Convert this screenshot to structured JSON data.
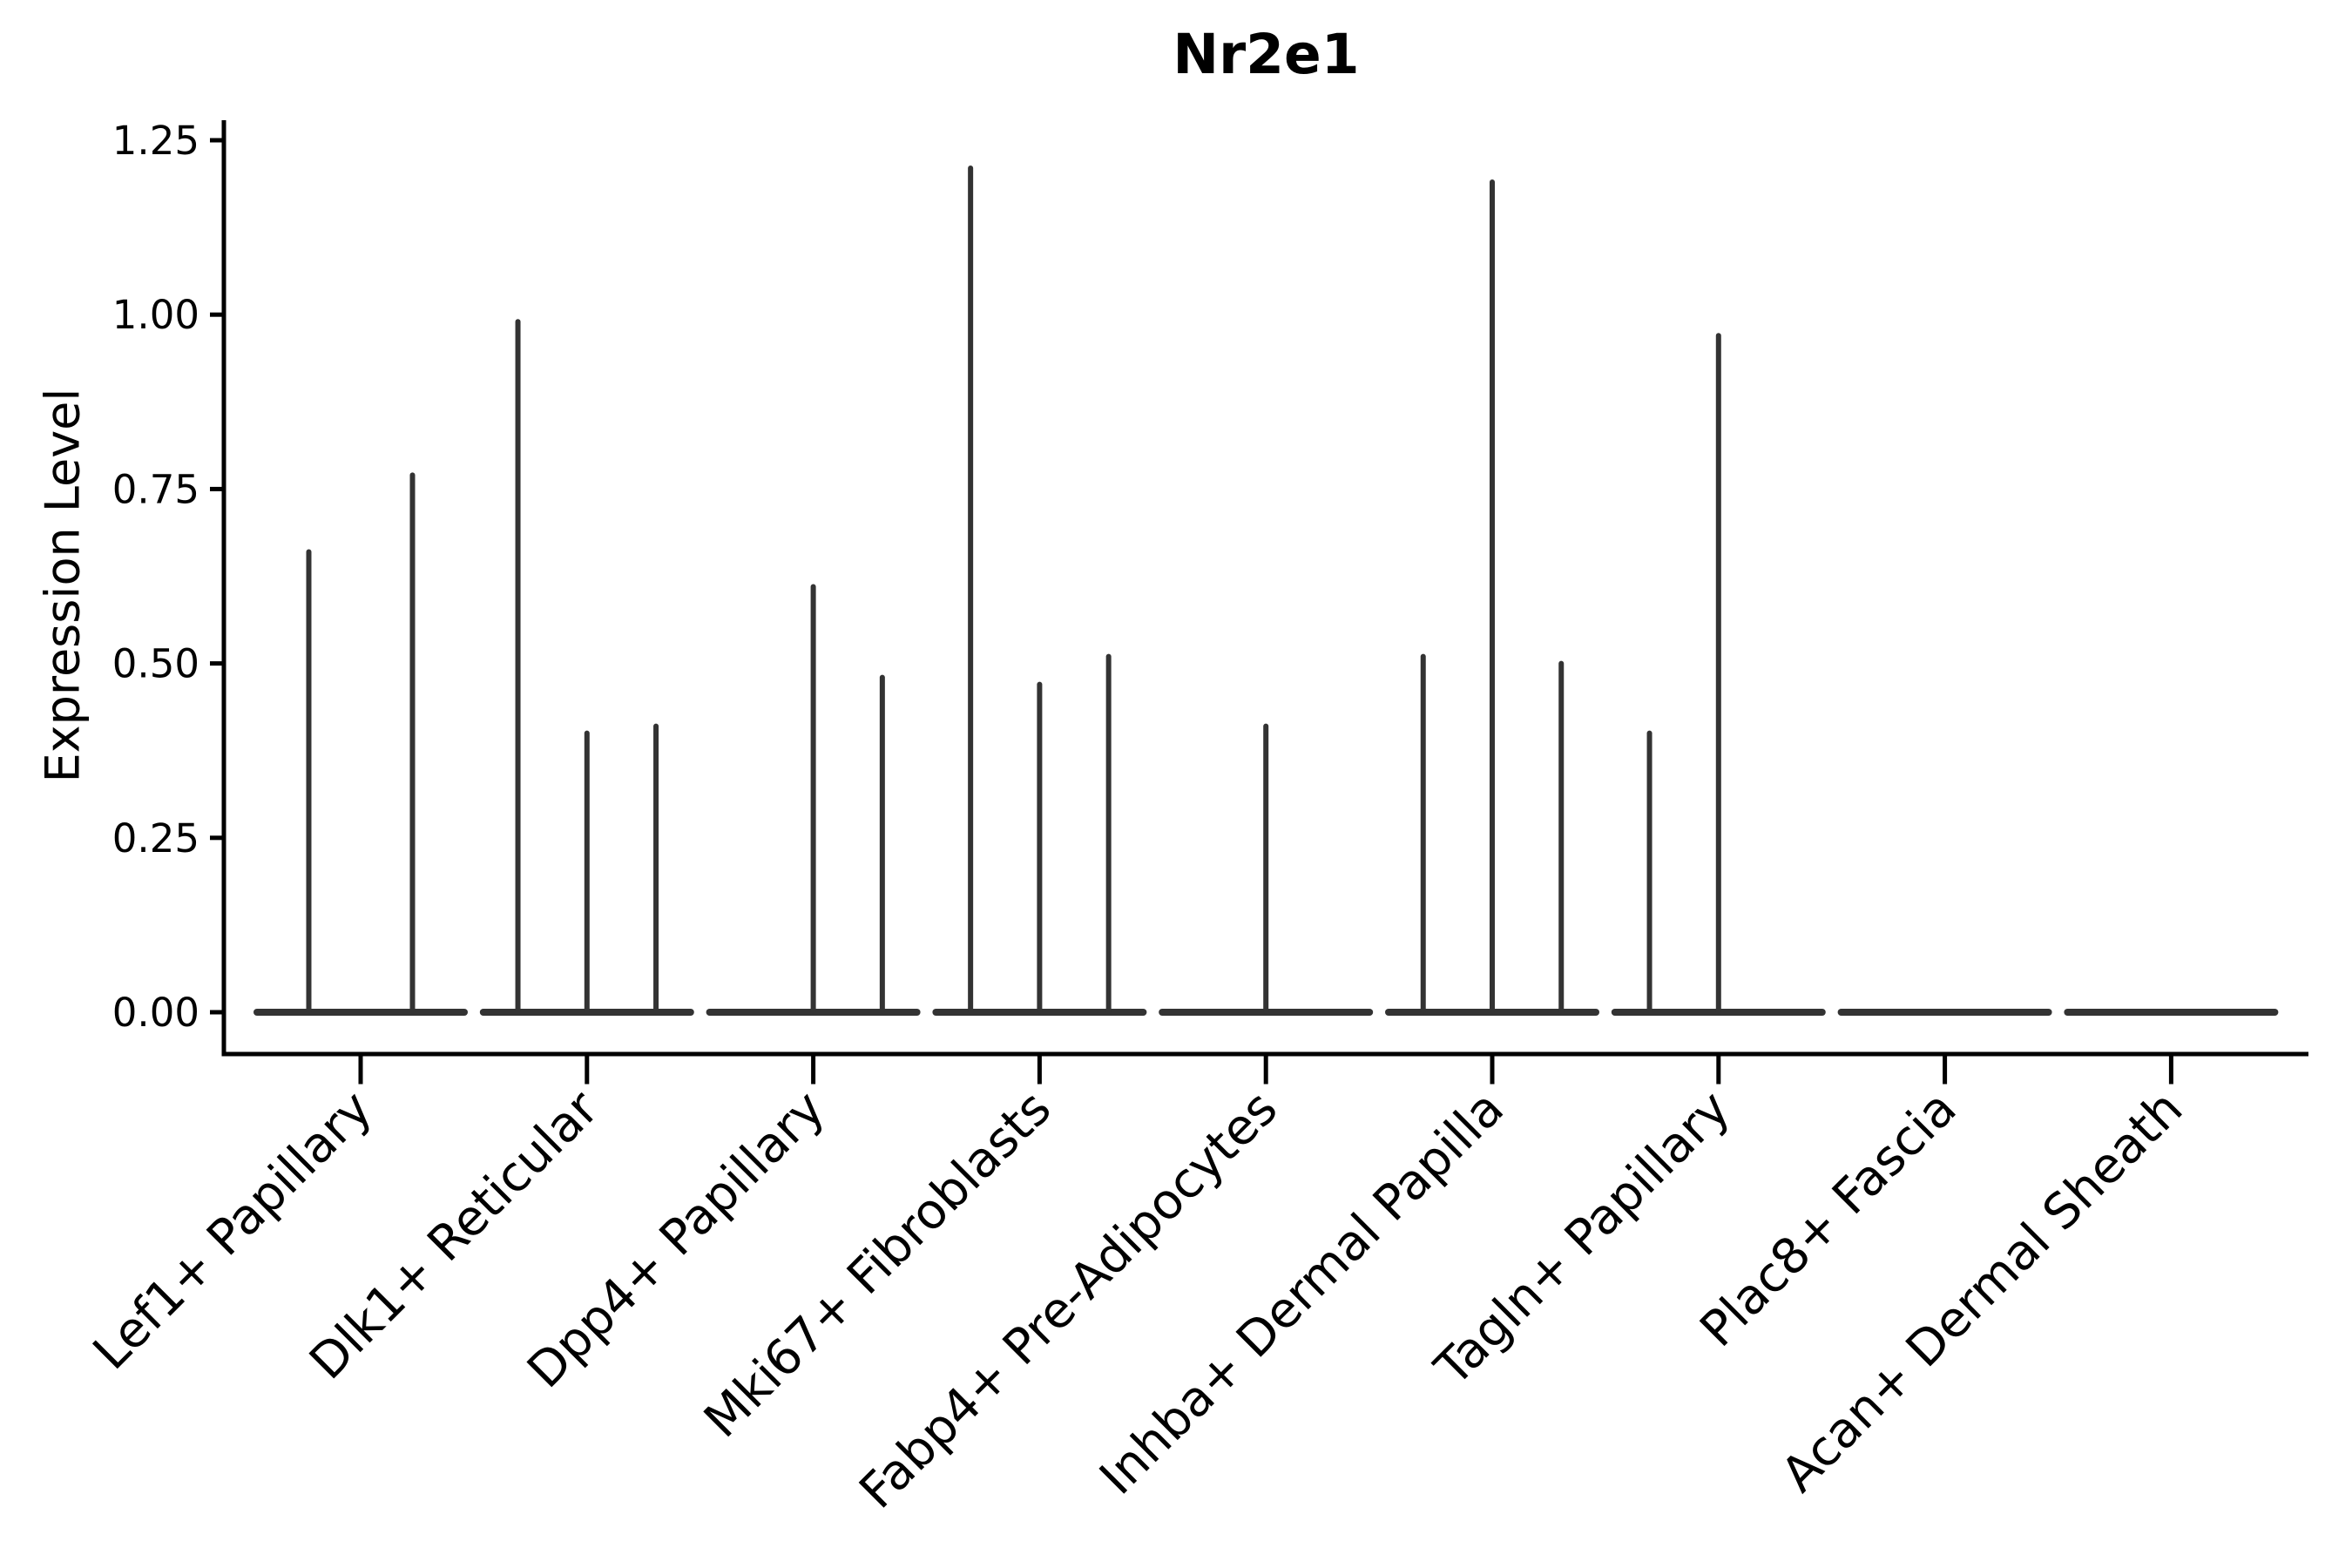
{
  "figure": {
    "title": "Nr2e1",
    "ylabel": "Expression Level"
  },
  "chart_data": {
    "type": "violin",
    "title": "Nr2e1",
    "xlabel": "",
    "ylabel": "Expression Level",
    "grid": false,
    "legend_position": "none",
    "ylim": [
      -0.06,
      1.28
    ],
    "yticks": [
      "0.00",
      "0.25",
      "0.50",
      "0.75",
      "1.00",
      "1.25"
    ],
    "ytick_values": [
      0,
      0.25,
      0.5,
      0.75,
      1,
      1.25
    ],
    "categories": [
      "Lef1+ Papillary",
      "Dlk1+ Reticular",
      "Dpp4+ Papillary",
      "Mki67+ Fibroblasts",
      "Fabp4+ Pre-Adipocytes",
      "Inhba+ Dermal Papilla",
      "Tagln+ Papillary",
      "Plac8+ Fascia",
      "Acan+ Dermal Sheath"
    ],
    "violins": [
      {
        "category": "Lef1+ Papillary",
        "spikes": [
          {
            "dx": -0.25,
            "max": 0.66
          },
          {
            "dx": 0.25,
            "max": 0.77
          }
        ]
      },
      {
        "category": "Dlk1+ Reticular",
        "spikes": [
          {
            "dx": -0.333,
            "max": 0.99
          },
          {
            "dx": 0,
            "max": 0.4
          },
          {
            "dx": 0.333,
            "max": 0.41
          }
        ]
      },
      {
        "category": "Dpp4+ Papillary",
        "spikes": [
          {
            "dx": 0,
            "max": 0.61
          },
          {
            "dx": 0.333,
            "max": 0.48
          }
        ]
      },
      {
        "category": "Mki67+ Fibroblasts",
        "spikes": [
          {
            "dx": -0.333,
            "max": 1.21
          },
          {
            "dx": 0,
            "max": 0.47
          },
          {
            "dx": 0.333,
            "max": 0.51
          }
        ]
      },
      {
        "category": "Fabp4+ Pre-Adipocytes",
        "spikes": [
          {
            "dx": 0,
            "max": 0.41
          }
        ]
      },
      {
        "category": "Inhba+ Dermal Papilla",
        "spikes": [
          {
            "dx": -0.333,
            "max": 0.51
          },
          {
            "dx": 0,
            "max": 1.19
          },
          {
            "dx": 0.333,
            "max": 0.5
          }
        ]
      },
      {
        "category": "Tagln+ Papillary",
        "spikes": [
          {
            "dx": -0.333,
            "max": 0.4
          },
          {
            "dx": 0,
            "max": 0.97
          }
        ]
      },
      {
        "category": "Plac8+ Fascia",
        "spikes": []
      },
      {
        "category": "Acan+ Dermal Sheath",
        "spikes": []
      }
    ],
    "violin_color": "#333333",
    "axis_color": "#000000",
    "background_color": "#ffffff"
  }
}
